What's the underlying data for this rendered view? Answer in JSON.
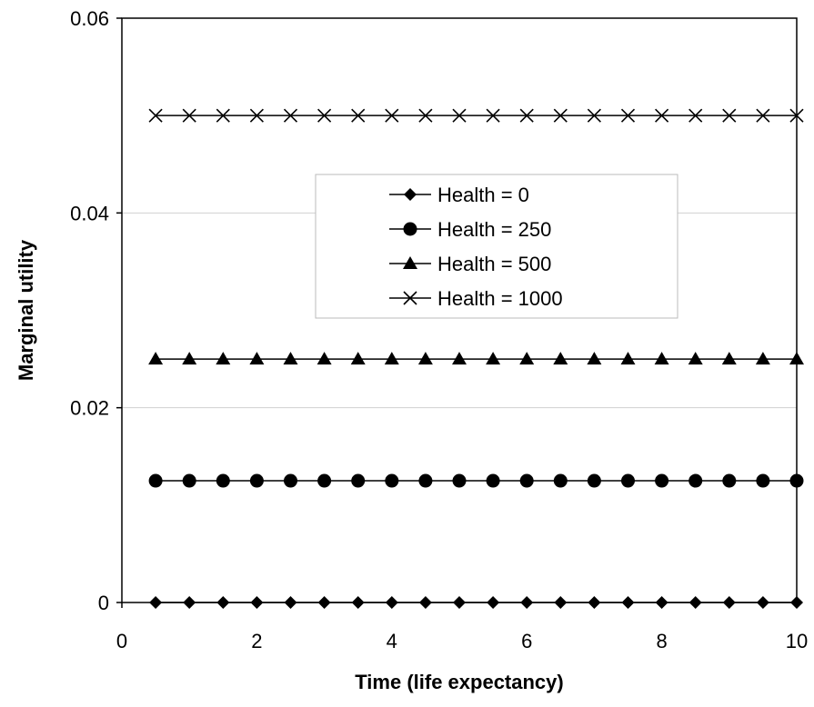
{
  "chart_data": {
    "type": "line",
    "title": "",
    "xlabel": "Time (life expectancy)",
    "ylabel": "Marginal utility",
    "xlim": [
      0,
      10
    ],
    "ylim": [
      0,
      0.06
    ],
    "x_ticks": [
      "0",
      "2",
      "4",
      "6",
      "8",
      "10"
    ],
    "y_ticks": [
      "0",
      "0.02",
      "0.04",
      "0.06"
    ],
    "grid": "horizontal",
    "legend_position": "center",
    "x": [
      0.5,
      1,
      1.5,
      2,
      2.5,
      3,
      3.5,
      4,
      4.5,
      5,
      5.5,
      6,
      6.5,
      7,
      7.5,
      8,
      8.5,
      9,
      9.5,
      10
    ],
    "series": [
      {
        "name": "Health = 0",
        "marker": "diamond",
        "values": [
          0,
          0,
          0,
          0,
          0,
          0,
          0,
          0,
          0,
          0,
          0,
          0,
          0,
          0,
          0,
          0,
          0,
          0,
          0,
          0
        ]
      },
      {
        "name": "Health = 250",
        "marker": "circle",
        "values": [
          0.0125,
          0.0125,
          0.0125,
          0.0125,
          0.0125,
          0.0125,
          0.0125,
          0.0125,
          0.0125,
          0.0125,
          0.0125,
          0.0125,
          0.0125,
          0.0125,
          0.0125,
          0.0125,
          0.0125,
          0.0125,
          0.0125,
          0.0125
        ]
      },
      {
        "name": "Health = 500",
        "marker": "triangle",
        "values": [
          0.025,
          0.025,
          0.025,
          0.025,
          0.025,
          0.025,
          0.025,
          0.025,
          0.025,
          0.025,
          0.025,
          0.025,
          0.025,
          0.025,
          0.025,
          0.025,
          0.025,
          0.025,
          0.025,
          0.025
        ]
      },
      {
        "name": "Health = 1000",
        "marker": "x",
        "values": [
          0.05,
          0.05,
          0.05,
          0.05,
          0.05,
          0.05,
          0.05,
          0.05,
          0.05,
          0.05,
          0.05,
          0.05,
          0.05,
          0.05,
          0.05,
          0.05,
          0.05,
          0.05,
          0.05,
          0.05
        ]
      }
    ]
  }
}
